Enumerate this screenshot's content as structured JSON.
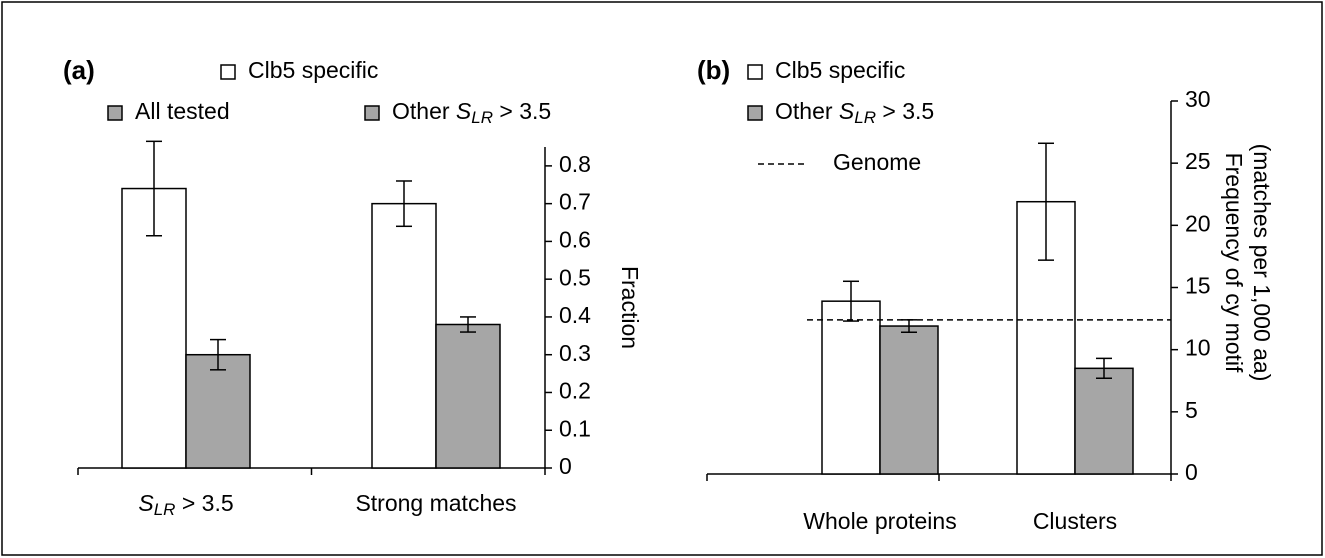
{
  "chart_data": [
    {
      "type": "bar",
      "panel_label": "(a)",
      "categories": [
        [
          {
            "text": "S",
            "italic": true
          },
          {
            "text": "LR",
            "sub": true,
            "italic": true
          },
          {
            "text": " > 3.5"
          }
        ],
        [
          {
            "text": "Strong matches"
          }
        ]
      ],
      "series": [
        {
          "name": [
            {
              "text": "Clb5 specific"
            }
          ],
          "color": "#ffffff",
          "values": [
            0.74,
            0.7
          ],
          "errors": [
            0.125,
            0.06
          ]
        },
        {
          "name": [
            {
              "text": "All tested"
            }
          ],
          "color": "#a6a6a6",
          "values": [
            0.3,
            null
          ],
          "errors": [
            0.04,
            null
          ]
        },
        {
          "name": [
            {
              "text": "Other "
            },
            {
              "text": "S",
              "italic": true
            },
            {
              "text": "LR",
              "sub": true,
              "italic": true
            },
            {
              "text": " > 3.5"
            }
          ],
          "color": "#a6a6a6",
          "values": [
            null,
            0.38
          ],
          "errors": [
            null,
            0.02
          ]
        }
      ],
      "ylabel": [
        "Fraction"
      ],
      "ylim": [
        0,
        0.85
      ],
      "yticks": [
        0,
        0.1,
        0.2,
        0.3,
        0.4,
        0.5,
        0.6,
        0.7,
        0.8
      ]
    },
    {
      "type": "bar",
      "panel_label": "(b)",
      "categories": [
        [
          {
            "text": "Whole proteins"
          }
        ],
        [
          {
            "text": "Clusters"
          }
        ]
      ],
      "series": [
        {
          "name": [
            {
              "text": "Clb5 specific"
            }
          ],
          "color": "#ffffff",
          "values": [
            13.9,
            21.9
          ],
          "errors": [
            1.6,
            4.7
          ]
        },
        {
          "name": [
            {
              "text": "Other "
            },
            {
              "text": "S",
              "italic": true
            },
            {
              "text": "LR",
              "sub": true,
              "italic": true
            },
            {
              "text": " > 3.5"
            }
          ],
          "color": "#a6a6a6",
          "values": [
            11.9,
            8.5
          ],
          "errors": [
            0.5,
            0.8
          ]
        }
      ],
      "reference_line": {
        "name": "Genome",
        "value": 12.4,
        "style": "dashed"
      },
      "ylabel": [
        "Frequency of cy motif",
        "(matches per 1,000 aa)"
      ],
      "ylim": [
        0,
        30
      ],
      "yticks": [
        0,
        5,
        10,
        15,
        20,
        25,
        30
      ]
    }
  ]
}
